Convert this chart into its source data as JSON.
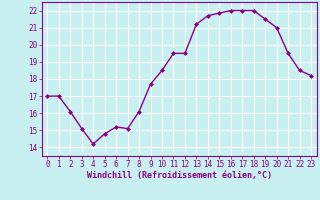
{
  "x": [
    0,
    1,
    2,
    3,
    4,
    5,
    6,
    7,
    8,
    9,
    10,
    11,
    12,
    13,
    14,
    15,
    16,
    17,
    18,
    19,
    20,
    21,
    22,
    23
  ],
  "y": [
    17.0,
    17.0,
    16.1,
    15.1,
    14.2,
    14.8,
    15.2,
    15.1,
    16.1,
    17.7,
    18.5,
    19.5,
    19.5,
    21.2,
    21.7,
    21.85,
    22.0,
    22.0,
    22.0,
    21.5,
    21.0,
    19.5,
    18.5,
    18.2
  ],
  "line_color": "#8B008B",
  "marker": "D",
  "marker_size": 2.0,
  "bg_color": "#c8f0f0",
  "grid_color": "#ffffff",
  "xlabel": "Windchill (Refroidissement éolien,°C)",
  "xlabel_color": "#8B008B",
  "tick_color": "#8B008B",
  "spine_color": "#8B008B",
  "xlim": [
    -0.5,
    23.5
  ],
  "ylim": [
    13.5,
    22.5
  ],
  "yticks": [
    14,
    15,
    16,
    17,
    18,
    19,
    20,
    21,
    22
  ],
  "xticks": [
    0,
    1,
    2,
    3,
    4,
    5,
    6,
    7,
    8,
    9,
    10,
    11,
    12,
    13,
    14,
    15,
    16,
    17,
    18,
    19,
    20,
    21,
    22,
    23
  ],
  "line_width": 1.0,
  "tick_fontsize": 5.5,
  "xlabel_fontsize": 6.0
}
